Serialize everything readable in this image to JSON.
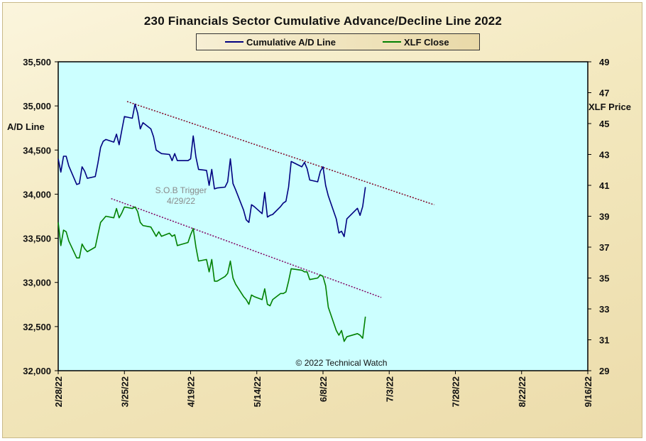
{
  "chart_data": {
    "type": "line",
    "title": "230 Financials  Sector Cumulative  Advance/Decline  Line 2022",
    "ylabel": "A/D Line",
    "y2label": "XLF Price",
    "ylim": [
      32000,
      35500
    ],
    "y2lim": [
      29,
      49
    ],
    "y_ticks": [
      "32,000",
      "32,500",
      "33,000",
      "33,500",
      "34,000",
      "34,500",
      "35,000",
      "35,500"
    ],
    "y2_ticks": [
      "29",
      "31",
      "33",
      "35",
      "37",
      "39",
      "41",
      "43",
      "45",
      "47",
      "49"
    ],
    "x_ticks": [
      "2/28/22",
      "3/25/22",
      "4/19/22",
      "5/14/22",
      "6/8/22",
      "7/3/22",
      "7/28/22",
      "8/22/22",
      "9/16/22"
    ],
    "xlim": [
      "2022-02-28",
      "2022-09-16"
    ],
    "legend_position": "top",
    "grid": false,
    "series": [
      {
        "name": "Cumulative A/D Line",
        "axis": "left",
        "color": "#000080",
        "points": [
          [
            "2022-02-28",
            34400
          ],
          [
            "2022-03-01",
            34250
          ],
          [
            "2022-03-02",
            34430
          ],
          [
            "2022-03-03",
            34430
          ],
          [
            "2022-03-04",
            34320
          ],
          [
            "2022-03-07",
            34110
          ],
          [
            "2022-03-08",
            34120
          ],
          [
            "2022-03-09",
            34310
          ],
          [
            "2022-03-10",
            34260
          ],
          [
            "2022-03-11",
            34180
          ],
          [
            "2022-03-14",
            34200
          ],
          [
            "2022-03-15",
            34350
          ],
          [
            "2022-03-16",
            34530
          ],
          [
            "2022-03-17",
            34600
          ],
          [
            "2022-03-18",
            34620
          ],
          [
            "2022-03-21",
            34590
          ],
          [
            "2022-03-22",
            34680
          ],
          [
            "2022-03-23",
            34560
          ],
          [
            "2022-03-24",
            34720
          ],
          [
            "2022-03-25",
            34880
          ],
          [
            "2022-03-28",
            34860
          ],
          [
            "2022-03-29",
            35020
          ],
          [
            "2022-03-30",
            34920
          ],
          [
            "2022-03-31",
            34740
          ],
          [
            "2022-04-01",
            34810
          ],
          [
            "2022-04-04",
            34740
          ],
          [
            "2022-04-05",
            34650
          ],
          [
            "2022-04-06",
            34500
          ],
          [
            "2022-04-07",
            34480
          ],
          [
            "2022-04-08",
            34460
          ],
          [
            "2022-04-11",
            34450
          ],
          [
            "2022-04-12",
            34380
          ],
          [
            "2022-04-13",
            34460
          ],
          [
            "2022-04-14",
            34380
          ],
          [
            "2022-04-18",
            34380
          ],
          [
            "2022-04-19",
            34400
          ],
          [
            "2022-04-20",
            34660
          ],
          [
            "2022-04-21",
            34420
          ],
          [
            "2022-04-22",
            34280
          ],
          [
            "2022-04-25",
            34270
          ],
          [
            "2022-04-26",
            34100
          ],
          [
            "2022-04-27",
            34280
          ],
          [
            "2022-04-28",
            34060
          ],
          [
            "2022-04-29",
            34070
          ],
          [
            "2022-05-02",
            34080
          ],
          [
            "2022-05-03",
            34140
          ],
          [
            "2022-05-04",
            34400
          ],
          [
            "2022-05-05",
            34120
          ],
          [
            "2022-05-06",
            34050
          ],
          [
            "2022-05-09",
            33820
          ],
          [
            "2022-05-10",
            33710
          ],
          [
            "2022-05-11",
            33680
          ],
          [
            "2022-05-12",
            33880
          ],
          [
            "2022-05-13",
            33860
          ],
          [
            "2022-05-16",
            33780
          ],
          [
            "2022-05-17",
            34020
          ],
          [
            "2022-05-18",
            33740
          ],
          [
            "2022-05-19",
            33760
          ],
          [
            "2022-05-20",
            33770
          ],
          [
            "2022-05-23",
            33860
          ],
          [
            "2022-05-24",
            33900
          ],
          [
            "2022-05-25",
            33920
          ],
          [
            "2022-05-26",
            34080
          ],
          [
            "2022-05-27",
            34370
          ],
          [
            "2022-05-31",
            34310
          ],
          [
            "2022-06-01",
            34360
          ],
          [
            "2022-06-02",
            34290
          ],
          [
            "2022-06-03",
            34160
          ],
          [
            "2022-06-06",
            34140
          ],
          [
            "2022-06-07",
            34260
          ],
          [
            "2022-06-08",
            34310
          ],
          [
            "2022-06-09",
            34100
          ],
          [
            "2022-06-10",
            33980
          ],
          [
            "2022-06-13",
            33720
          ],
          [
            "2022-06-14",
            33560
          ],
          [
            "2022-06-15",
            33580
          ],
          [
            "2022-06-16",
            33520
          ],
          [
            "2022-06-17",
            33720
          ],
          [
            "2022-06-21",
            33840
          ],
          [
            "2022-06-22",
            33760
          ],
          [
            "2022-06-23",
            33860
          ],
          [
            "2022-06-24",
            34080
          ]
        ]
      },
      {
        "name": "XLF Close",
        "axis": "right",
        "color": "#008000",
        "points": [
          [
            "2022-02-28",
            38.6
          ],
          [
            "2022-03-01",
            37.1
          ],
          [
            "2022-03-02",
            38.1
          ],
          [
            "2022-03-03",
            38.0
          ],
          [
            "2022-03-04",
            37.4
          ],
          [
            "2022-03-07",
            36.3
          ],
          [
            "2022-03-08",
            36.3
          ],
          [
            "2022-03-09",
            37.2
          ],
          [
            "2022-03-10",
            36.9
          ],
          [
            "2022-03-11",
            36.7
          ],
          [
            "2022-03-14",
            37.0
          ],
          [
            "2022-03-15",
            37.8
          ],
          [
            "2022-03-16",
            38.6
          ],
          [
            "2022-03-17",
            38.8
          ],
          [
            "2022-03-18",
            39.0
          ],
          [
            "2022-03-21",
            38.9
          ],
          [
            "2022-03-22",
            39.5
          ],
          [
            "2022-03-23",
            38.9
          ],
          [
            "2022-03-24",
            39.2
          ],
          [
            "2022-03-25",
            39.6
          ],
          [
            "2022-03-28",
            39.5
          ],
          [
            "2022-03-29",
            39.6
          ],
          [
            "2022-03-30",
            39.3
          ],
          [
            "2022-03-31",
            38.6
          ],
          [
            "2022-04-01",
            38.4
          ],
          [
            "2022-04-04",
            38.3
          ],
          [
            "2022-04-05",
            38.0
          ],
          [
            "2022-04-06",
            37.7
          ],
          [
            "2022-04-07",
            38.0
          ],
          [
            "2022-04-08",
            37.7
          ],
          [
            "2022-04-11",
            37.9
          ],
          [
            "2022-04-12",
            37.7
          ],
          [
            "2022-04-13",
            37.8
          ],
          [
            "2022-04-14",
            37.1
          ],
          [
            "2022-04-18",
            37.3
          ],
          [
            "2022-04-19",
            37.8
          ],
          [
            "2022-04-20",
            38.2
          ],
          [
            "2022-04-21",
            37.0
          ],
          [
            "2022-04-22",
            36.1
          ],
          [
            "2022-04-25",
            36.2
          ],
          [
            "2022-04-26",
            35.4
          ],
          [
            "2022-04-27",
            36.2
          ],
          [
            "2022-04-28",
            34.8
          ],
          [
            "2022-04-29",
            34.8
          ],
          [
            "2022-05-02",
            35.1
          ],
          [
            "2022-05-03",
            35.3
          ],
          [
            "2022-05-04",
            36.1
          ],
          [
            "2022-05-05",
            35.0
          ],
          [
            "2022-05-06",
            34.6
          ],
          [
            "2022-05-09",
            33.8
          ],
          [
            "2022-05-10",
            33.6
          ],
          [
            "2022-05-11",
            33.3
          ],
          [
            "2022-05-12",
            33.9
          ],
          [
            "2022-05-13",
            33.8
          ],
          [
            "2022-05-16",
            33.6
          ],
          [
            "2022-05-17",
            34.3
          ],
          [
            "2022-05-18",
            33.3
          ],
          [
            "2022-05-19",
            33.2
          ],
          [
            "2022-05-20",
            33.6
          ],
          [
            "2022-05-23",
            34.0
          ],
          [
            "2022-05-24",
            34.0
          ],
          [
            "2022-05-25",
            34.1
          ],
          [
            "2022-05-26",
            34.8
          ],
          [
            "2022-05-27",
            35.6
          ],
          [
            "2022-05-31",
            35.5
          ],
          [
            "2022-06-01",
            35.4
          ],
          [
            "2022-06-02",
            35.4
          ],
          [
            "2022-06-03",
            34.9
          ],
          [
            "2022-06-06",
            35.0
          ],
          [
            "2022-06-07",
            35.2
          ],
          [
            "2022-06-08",
            35.1
          ],
          [
            "2022-06-09",
            34.5
          ],
          [
            "2022-06-10",
            33.1
          ],
          [
            "2022-06-13",
            31.6
          ],
          [
            "2022-06-14",
            31.3
          ],
          [
            "2022-06-15",
            31.6
          ],
          [
            "2022-06-16",
            30.9
          ],
          [
            "2022-06-17",
            31.2
          ],
          [
            "2022-06-21",
            31.4
          ],
          [
            "2022-06-22",
            31.3
          ],
          [
            "2022-06-23",
            31.1
          ],
          [
            "2022-06-24",
            32.5
          ]
        ]
      }
    ],
    "trendlines": [
      {
        "axis": "left",
        "color": "#800020",
        "points": [
          [
            "2022-03-26",
            35050
          ],
          [
            "2022-07-20",
            33880
          ]
        ]
      },
      {
        "axis": "left",
        "color": "#800060",
        "points": [
          [
            "2022-03-20",
            33950
          ],
          [
            "2022-06-30",
            32830
          ]
        ]
      }
    ],
    "annotations": {
      "sob_trigger_line1": "S.O.B  Trigger",
      "sob_trigger_line2": "4/29/22",
      "copyright": "© 2022 Technical Watch"
    }
  }
}
